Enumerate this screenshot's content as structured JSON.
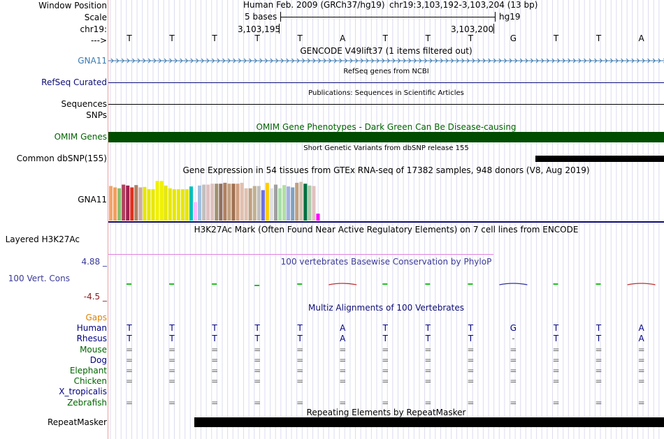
{
  "labels": {
    "window_position": "Window Position",
    "scale": "Scale",
    "chrom": "chr19:",
    "arrow": "--->",
    "gna11": "GNA11",
    "refseq": "RefSeq Curated",
    "sequences": "Sequences",
    "snps": "SNPs",
    "omim": "OMIM Genes",
    "dbsnp": "Common dbSNP(155)",
    "gtex_gene": "GNA11",
    "h3k27ac": "Layered H3K27Ac",
    "cons_max": "4.88 _",
    "cons": "100 Vert. Cons",
    "cons_min": "-4.5 _",
    "repeatmasker": "RepeatMasker"
  },
  "ruler": {
    "assembly": "Human Feb. 2009 (GRCh37/hg19)",
    "position": "chr19:3,103,192-3,103,204 (13 bp)",
    "scale_text": "5 bases",
    "db": "hg19",
    "pos_left": "3,103,195",
    "pos_right": "3,103,200"
  },
  "bases": [
    "T",
    "T",
    "T",
    "T",
    "T",
    "A",
    "T",
    "T",
    "T",
    "G",
    "T",
    "T",
    "A"
  ],
  "titles": {
    "gencode": "GENCODE V49lift37 (1 items filtered out)",
    "refseq": "RefSeq genes from NCBI",
    "publications": "Publications: Sequences in Scientific Articles",
    "omim": "OMIM Gene Phenotypes - Dark Green Can Be Disease-causing",
    "dbsnp": "Short Genetic Variants from dbSNP release 155",
    "gtex": "Gene Expression in 54 tissues from GTEx RNA-seq of 17382 samples, 948 donors (V8, Aug 2019)",
    "h3k27ac": "H3K27Ac Mark (Often Found Near Active Regulatory Elements) on 7 cell lines from ENCODE",
    "phylop": "100 vertebrates Basewise Conservation by PhyloP",
    "multiz": "Multiz Alignments of 100 Vertebrates",
    "repeatmasker": "Repeating Elements by RepeatMasker"
  },
  "multiz": {
    "species": [
      {
        "name": "Gaps",
        "color": "#e08000"
      },
      {
        "name": "Human",
        "color": "#000080",
        "row": [
          "T",
          "T",
          "T",
          "T",
          "T",
          "A",
          "T",
          "T",
          "T",
          "G",
          "T",
          "T",
          "A"
        ]
      },
      {
        "name": "Rhesus",
        "color": "#000080",
        "row": [
          "T",
          "T",
          "T",
          "T",
          "T",
          "A",
          "T",
          "T",
          "T",
          "-",
          "T",
          "T",
          "A"
        ]
      },
      {
        "name": "Mouse",
        "color": "#006400",
        "row": [
          "=",
          "=",
          "=",
          "=",
          "=",
          "=",
          "=",
          "=",
          "=",
          "=",
          "=",
          "=",
          "="
        ]
      },
      {
        "name": "Dog",
        "color": "#000080",
        "row": [
          "=",
          "=",
          "=",
          "=",
          "=",
          "=",
          "=",
          "=",
          "=",
          "=",
          "=",
          "=",
          "="
        ]
      },
      {
        "name": "Elephant",
        "color": "#006400",
        "row": [
          "=",
          "=",
          "=",
          "=",
          "=",
          "=",
          "=",
          "=",
          "=",
          "=",
          "=",
          "=",
          "="
        ]
      },
      {
        "name": "Chicken",
        "color": "#006400",
        "row": [
          "=",
          "=",
          "=",
          "=",
          "=",
          "=",
          "=",
          "=",
          "=",
          "=",
          "=",
          "=",
          "="
        ]
      },
      {
        "name": "X_tropicalis",
        "color": "#000080"
      },
      {
        "name": "Zebrafish",
        "color": "#006400",
        "row": [
          "=",
          "=",
          "=",
          "=",
          "=",
          "=",
          "=",
          "=",
          "=",
          "=",
          "=",
          "=",
          "="
        ]
      }
    ]
  },
  "gtex_colors": [
    "#f3a56a",
    "#f0a060",
    "#88c070",
    "#b0405f",
    "#a02050",
    "#e03020",
    "#b08060",
    "#ccaaaa",
    "#e7e700",
    "#e7e700",
    "#e7e700",
    "#f0f000",
    "#f0f000",
    "#e7e700",
    "#e7e700",
    "#e7e700",
    "#e7e700",
    "#e7e700",
    "#e7e700",
    "#00c0c0",
    "#ffbbff",
    "#a0c0e0",
    "#c0c0c0",
    "#e0c0c0",
    "#e0c0c0",
    "#a09070",
    "#907060",
    "#b08060",
    "#c0a080",
    "#a07050",
    "#d0a080",
    "#e0c0b0",
    "#e0c0b0",
    "#c0a080",
    "#c0b090",
    "#c0c0c0",
    "#7070e0",
    "#ffcc00",
    "#e0e0e0",
    "#a0a0a0",
    "#aaddaa",
    "#b0e0a0",
    "#a0b0e0",
    "#80a0c0",
    "#c0a080",
    "#d0c0b0",
    "#007040",
    "#aaccaa",
    "#e0c0c0",
    "#ff00ff"
  ],
  "gtex_values": [
    0.75,
    0.72,
    0.7,
    0.78,
    0.76,
    0.72,
    0.77,
    0.72,
    0.73,
    0.68,
    0.68,
    0.86,
    0.86,
    0.76,
    0.7,
    0.68,
    0.68,
    0.68,
    0.68,
    0.74,
    0.4,
    0.76,
    0.78,
    0.78,
    0.8,
    0.8,
    0.8,
    0.82,
    0.8,
    0.8,
    0.8,
    0.82,
    0.7,
    0.7,
    0.75,
    0.75,
    0.66,
    0.82,
    0.7,
    0.78,
    0.7,
    0.77,
    0.74,
    0.72,
    0.82,
    0.84,
    0.8,
    0.76,
    0.75,
    0.15
  ]
}
